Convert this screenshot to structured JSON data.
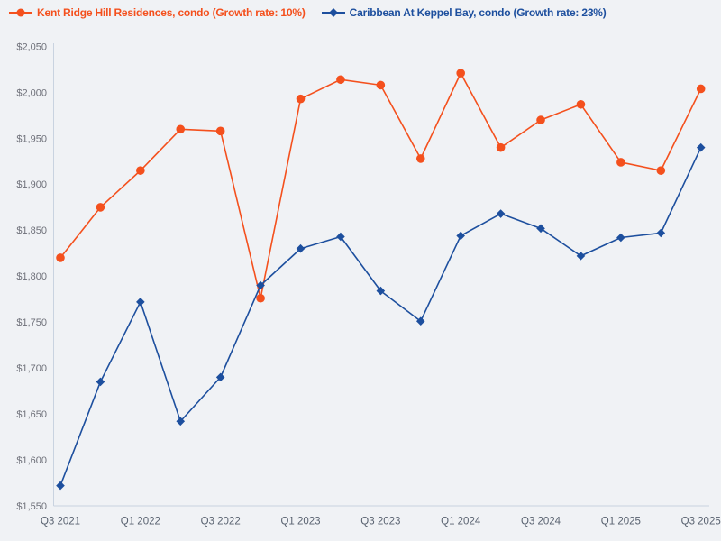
{
  "legend": {
    "items": [
      {
        "label": "Kent Ridge Hill Residences, condo (Growth rate: 10%)",
        "color": "#f4501d",
        "marker": "circle"
      },
      {
        "label": "Caribbean At Keppel Bay, condo (Growth rate: 23%)",
        "color": "#1d4f9e",
        "marker": "diamond"
      }
    ]
  },
  "chart_data": {
    "type": "line",
    "categories": [
      "Q3 2021",
      "Q4 2021",
      "Q1 2022",
      "Q2 2022",
      "Q3 2022",
      "Q4 2022",
      "Q1 2023",
      "Q2 2023",
      "Q3 2023",
      "Q4 2023",
      "Q1 2024",
      "Q2 2024",
      "Q3 2024",
      "Q4 2024",
      "Q1 2025",
      "Q2 2025",
      "Q3 2025"
    ],
    "x_tick_labels": [
      "Q3 2021",
      "Q1 2022",
      "Q3 2022",
      "Q1 2023",
      "Q3 2023",
      "Q1 2024",
      "Q3 2024",
      "Q1 2025",
      "Q3 2025"
    ],
    "y_tick_labels": [
      "$1,550",
      "$1,600",
      "$1,650",
      "$1,700",
      "$1,750",
      "$1,800",
      "$1,850",
      "$1,900",
      "$1,950",
      "$2,000",
      "$2,050"
    ],
    "ylim": [
      1550,
      2050
    ],
    "y_tick_step": 50,
    "grid": false,
    "legend_position": "top-left",
    "series": [
      {
        "name": "Kent Ridge Hill Residences, condo",
        "growth_rate": "10%",
        "color": "#f4501d",
        "marker": "circle",
        "values": [
          1820,
          1875,
          1915,
          1960,
          1958,
          1776,
          1993,
          2014,
          2008,
          1928,
          2021,
          1940,
          1970,
          1987,
          1924,
          1915,
          2004
        ]
      },
      {
        "name": "Caribbean At Keppel Bay, condo",
        "growth_rate": "23%",
        "color": "#1d4f9e",
        "marker": "diamond",
        "values": [
          1572,
          1685,
          1772,
          1642,
          1690,
          1790,
          1830,
          1843,
          1784,
          1751,
          1844,
          1868,
          1852,
          1822,
          1842,
          1847,
          1940
        ]
      }
    ]
  },
  "colors": {
    "background": "#f0f2f5",
    "axis_line": "#c9d3e0",
    "y_tick_label": "#6e7079",
    "x_tick_label": "#596270"
  }
}
